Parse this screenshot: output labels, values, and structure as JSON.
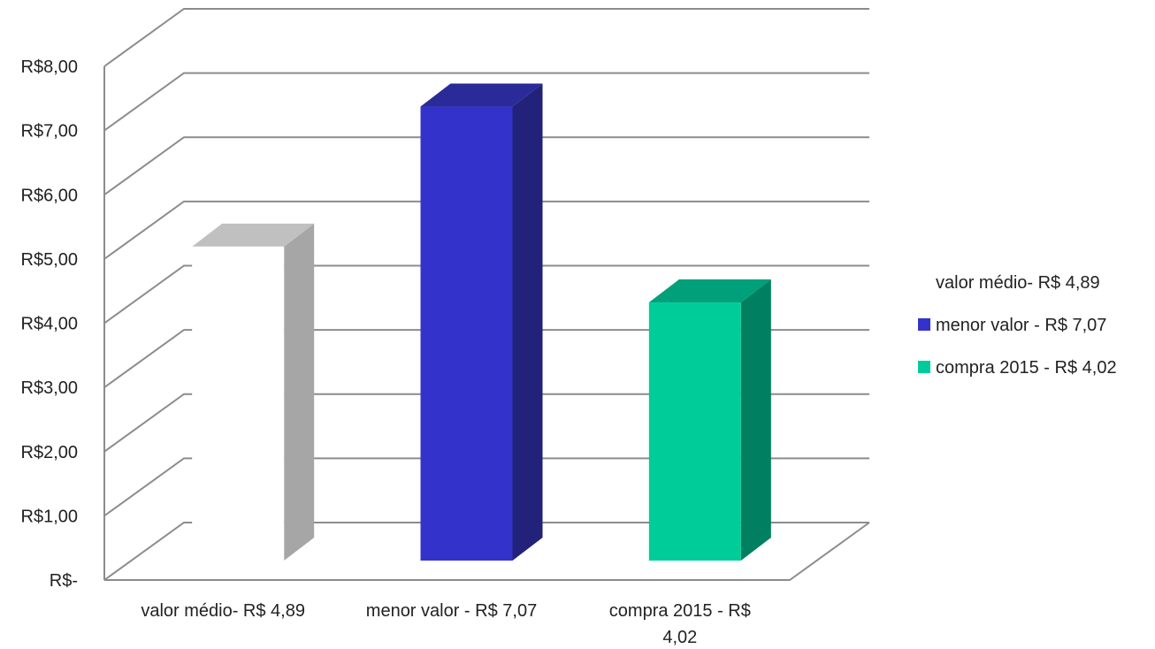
{
  "chart_data": {
    "type": "bar",
    "style": "3d-column",
    "categories": [
      "valor médio- R$ 4,89",
      "menor valor - R$ 7,07",
      "compra 2015 - R$ 4,02"
    ],
    "series": [
      {
        "name": "valor médio- R$ 4,89",
        "values": [
          4.89,
          null,
          null
        ],
        "color": "#ffffff",
        "side_color": "#a6a6a6",
        "top_color": "#c0c0c0",
        "swatch": false
      },
      {
        "name": "menor valor - R$ 7,07",
        "values": [
          null,
          7.07,
          null
        ],
        "color": "#3333cc",
        "side_color": "#22227a",
        "top_color": "#2a2a99",
        "swatch": true
      },
      {
        "name": "compra 2015 - R$ 4,02",
        "values": [
          null,
          null,
          4.02
        ],
        "color": "#00cc99",
        "side_color": "#008060",
        "top_color": "#00a07a",
        "swatch": true
      }
    ],
    "y_ticks": [
      "R$-",
      "R$1,00",
      "R$2,00",
      "R$3,00",
      "R$4,00",
      "R$5,00",
      "R$6,00",
      "R$7,00",
      "R$8,00"
    ],
    "ylim": [
      0,
      8
    ],
    "grid": true,
    "legend_position": "right",
    "x_tick_lines": [
      [
        "valor médio- R$ 4,89"
      ],
      [
        "menor valor - R$ 7,07"
      ],
      [
        "compra 2015 - R$",
        "4,02"
      ]
    ]
  }
}
